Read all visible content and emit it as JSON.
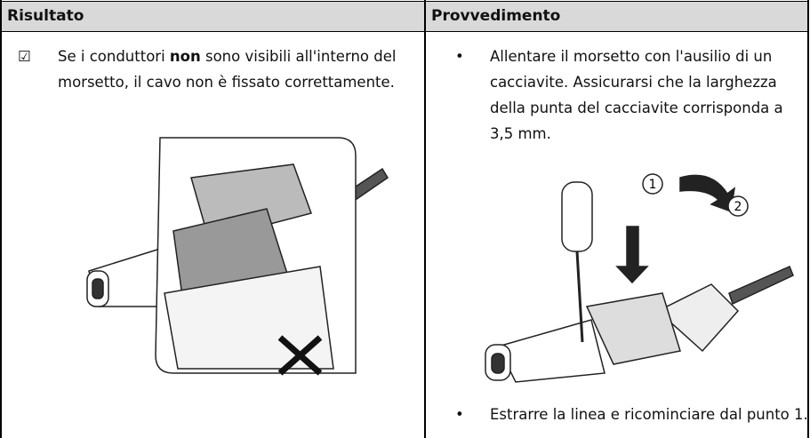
{
  "table": {
    "header": [
      "Risultato",
      "Provvedimento"
    ],
    "rows": [
      [
        {
          "marker": "☑",
          "parts": [
            "Se i conduttori ",
            "non",
            " sono visibili all'interno del morsetto, il cavo non è fissato correttamente."
          ]
        },
        {
          "items": [
            "Allentare il morsetto con l'ausilio di un cacciavite. Assicurarsi che la larghezza della punta del cacciavite corrisponda a 3,5 mm.",
            "Estrarre la linea e ricominciare dal punto 1."
          ]
        }
      ]
    ]
  },
  "figure": {
    "callouts": [
      "1",
      "2"
    ]
  }
}
